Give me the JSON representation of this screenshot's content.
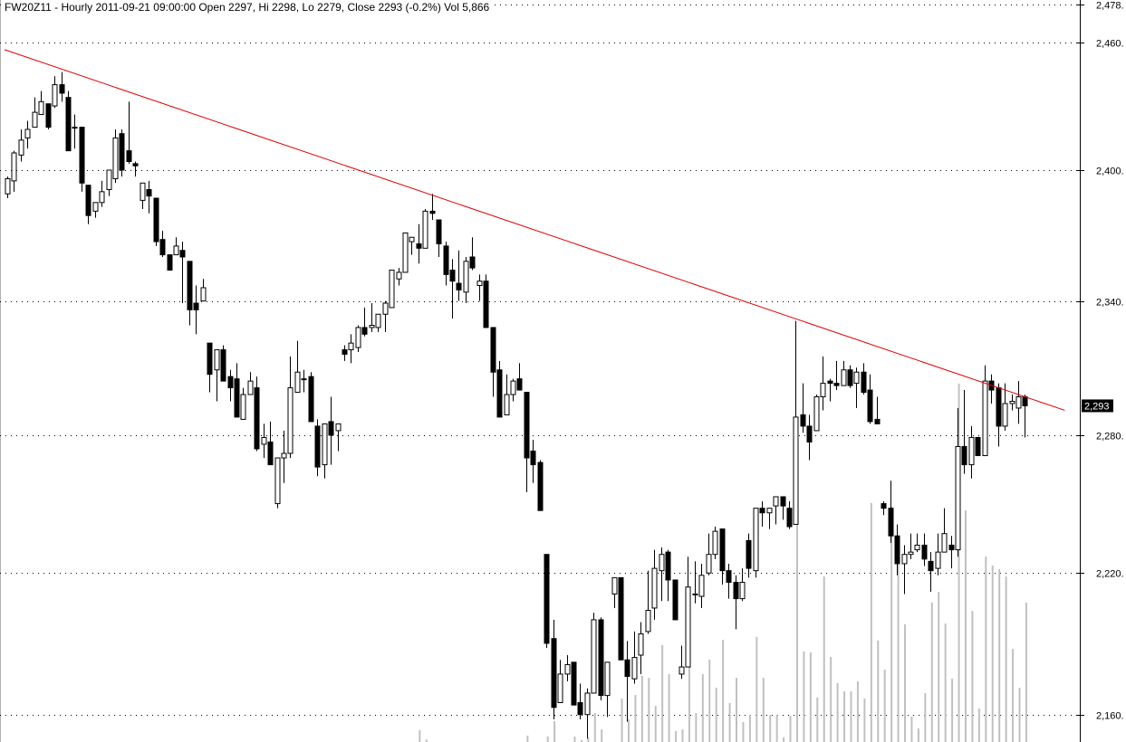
{
  "header": {
    "title": "FW20Z11 - Hourly 2011-09-21 09:00:00 Open 2297, Hi 2298, Lo 2279, Close 2293 (-0.2%) Vol 5,866"
  },
  "chart_data": {
    "type": "candlestick",
    "symbol": "FW20Z11",
    "interval": "Hourly",
    "y_scale": "log",
    "ylim": [
      2150,
      2478
    ],
    "grid": "horizontal dotted",
    "y_ticks": [
      {
        "value": 2478,
        "label": "2,478."
      },
      {
        "value": 2460,
        "label": "2,460."
      },
      {
        "value": 2400,
        "label": "2,400."
      },
      {
        "value": 2340,
        "label": "2,340."
      },
      {
        "value": 2280,
        "label": "2,280."
      },
      {
        "value": 2220,
        "label": "2,220."
      },
      {
        "value": 2160,
        "label": "2,160."
      }
    ],
    "last_price": {
      "value": 2293,
      "label": "2,293"
    },
    "colors": {
      "up": "#ffffff",
      "down": "#000000",
      "outline": "#000000",
      "volume": "#c0c0c0",
      "trendline": "#e00000",
      "last_price_bg": "#000000"
    },
    "ohlc_fields": [
      "open",
      "high",
      "low",
      "close"
    ],
    "ohlc": [
      [
        2389,
        2397,
        2387,
        2396
      ],
      [
        2395,
        2409,
        2390,
        2408
      ],
      [
        2407,
        2419,
        2404,
        2414
      ],
      [
        2415,
        2423,
        2410,
        2419
      ],
      [
        2420,
        2434,
        2420,
        2427
      ],
      [
        2426,
        2437,
        2426,
        2432
      ],
      [
        2431,
        2431,
        2419,
        2420
      ],
      [
        2430,
        2444,
        2429,
        2440
      ],
      [
        2440,
        2446,
        2432,
        2436
      ],
      [
        2434,
        2437,
        2409,
        2409
      ],
      [
        2420,
        2426,
        2410,
        2420
      ],
      [
        2420,
        2420,
        2390,
        2394
      ],
      [
        2393,
        2393,
        2375,
        2379
      ],
      [
        2381,
        2385,
        2378,
        2385
      ],
      [
        2385,
        2395,
        2383,
        2390
      ],
      [
        2391,
        2400,
        2388,
        2400
      ],
      [
        2396,
        2419,
        2394,
        2415
      ],
      [
        2417,
        2419,
        2397,
        2400
      ],
      [
        2409,
        2432,
        2403,
        2404
      ],
      [
        2403,
        2404,
        2397,
        2402
      ],
      [
        2386,
        2394,
        2382,
        2394
      ],
      [
        2391,
        2395,
        2380,
        2388
      ],
      [
        2387,
        2387,
        2365,
        2367
      ],
      [
        2368,
        2372,
        2360,
        2361
      ],
      [
        2361,
        2361,
        2354,
        2354
      ],
      [
        2361,
        2369,
        2361,
        2365
      ],
      [
        2363,
        2367,
        2339,
        2360
      ],
      [
        2358,
        2358,
        2329,
        2336
      ],
      [
        2339,
        2347,
        2325,
        2336
      ],
      [
        2340,
        2350,
        2340,
        2346
      ],
      [
        2321,
        2321,
        2299,
        2307
      ],
      [
        2309,
        2318,
        2295,
        2318
      ],
      [
        2318,
        2320,
        2304,
        2304
      ],
      [
        2306,
        2309,
        2295,
        2301
      ],
      [
        2305,
        2312,
        2288,
        2288
      ],
      [
        2287,
        2301,
        2287,
        2298
      ],
      [
        2298,
        2308,
        2298,
        2304
      ],
      [
        2301,
        2306,
        2273,
        2274
      ],
      [
        2276,
        2285,
        2270,
        2279
      ],
      [
        2277,
        2286,
        2267,
        2267
      ],
      [
        2250,
        2270,
        2248,
        2270
      ],
      [
        2270,
        2282,
        2259,
        2272
      ],
      [
        2272,
        2315,
        2270,
        2301
      ],
      [
        2299,
        2322,
        2299,
        2308
      ],
      [
        2305,
        2309,
        2299,
        2305
      ],
      [
        2306,
        2308,
        2286,
        2286
      ],
      [
        2284,
        2287,
        2262,
        2266
      ],
      [
        2267,
        2285,
        2261,
        2285
      ],
      [
        2286,
        2297,
        2267,
        2280
      ],
      [
        2282,
        2285,
        2273,
        2285
      ],
      [
        2318,
        2320,
        2313,
        2316
      ],
      [
        2318,
        2325,
        2312,
        2321
      ],
      [
        2319,
        2329,
        2317,
        2328
      ],
      [
        2328,
        2337,
        2324,
        2325
      ],
      [
        2328,
        2339,
        2326,
        2329
      ],
      [
        2328,
        2334,
        2326,
        2334
      ],
      [
        2334,
        2340,
        2326,
        2339
      ],
      [
        2337,
        2354,
        2337,
        2354
      ],
      [
        2350,
        2355,
        2347,
        2353
      ],
      [
        2353,
        2371,
        2353,
        2371
      ],
      [
        2367,
        2369,
        2361,
        2369
      ],
      [
        2366,
        2375,
        2357,
        2364
      ],
      [
        2364,
        2382,
        2364,
        2381
      ],
      [
        2381,
        2389,
        2377,
        2380
      ],
      [
        2377,
        2377,
        2360,
        2366
      ],
      [
        2365,
        2367,
        2347,
        2352
      ],
      [
        2354,
        2359,
        2332,
        2349
      ],
      [
        2348,
        2363,
        2340,
        2345
      ],
      [
        2344,
        2360,
        2339,
        2358
      ],
      [
        2360,
        2369,
        2354,
        2355
      ],
      [
        2347,
        2352,
        2340,
        2349
      ],
      [
        2349,
        2352,
        2328,
        2328
      ],
      [
        2328,
        2328,
        2297,
        2308
      ],
      [
        2309,
        2313,
        2288,
        2288
      ],
      [
        2289,
        2307,
        2289,
        2298
      ],
      [
        2298,
        2305,
        2295,
        2304
      ],
      [
        2305,
        2312,
        2300,
        2300
      ],
      [
        2299,
        2299,
        2255,
        2270
      ],
      [
        2273,
        2278,
        2259,
        2267
      ],
      [
        2268,
        2269,
        2247,
        2247
      ],
      [
        2228,
        2228,
        2188,
        2190
      ],
      [
        2192,
        2200,
        2158,
        2163
      ],
      [
        2165,
        2183,
        2165,
        2177
      ],
      [
        2177,
        2185,
        2174,
        2181
      ],
      [
        2182,
        2182,
        2164,
        2164
      ],
      [
        2165,
        2173,
        2158,
        2160
      ],
      [
        2160,
        2171,
        2150,
        2169
      ],
      [
        2169,
        2203,
        2169,
        2200
      ],
      [
        2200,
        2201,
        2166,
        2168
      ],
      [
        2168,
        2182,
        2159,
        2182
      ],
      [
        2211,
        2218,
        2205,
        2218
      ],
      [
        2218,
        2218,
        2183,
        2183
      ],
      [
        2183,
        2191,
        2157,
        2176
      ],
      [
        2175,
        2195,
        2173,
        2184
      ],
      [
        2185,
        2199,
        2177,
        2194
      ],
      [
        2195,
        2221,
        2194,
        2204
      ],
      [
        2205,
        2230,
        2200,
        2222
      ],
      [
        2221,
        2231,
        2208,
        2228
      ],
      [
        2229,
        2230,
        2208,
        2217
      ],
      [
        2217,
        2217,
        2200,
        2200
      ],
      [
        2177,
        2189,
        2175,
        2180
      ],
      [
        2180,
        2227,
        2180,
        2214
      ],
      [
        2211,
        2225,
        2207,
        2211
      ],
      [
        2210,
        2224,
        2205,
        2219
      ],
      [
        2220,
        2237,
        2219,
        2228
      ],
      [
        2228,
        2240,
        2226,
        2238
      ],
      [
        2239,
        2239,
        2215,
        2221
      ],
      [
        2221,
        2224,
        2209,
        2216
      ],
      [
        2216,
        2219,
        2196,
        2209
      ],
      [
        2209,
        2222,
        2208,
        2216
      ],
      [
        2234,
        2237,
        2218,
        2222
      ],
      [
        2221,
        2248,
        2218,
        2248
      ],
      [
        2248,
        2251,
        2240,
        2246
      ],
      [
        2246,
        2248,
        2239,
        2248
      ],
      [
        2249,
        2253,
        2241,
        2253
      ],
      [
        2253,
        2253,
        2243,
        2249
      ],
      [
        2248,
        2251,
        2239,
        2240
      ],
      [
        2241,
        2331,
        2241,
        2288
      ],
      [
        2289,
        2303,
        2281,
        2284
      ],
      [
        2284,
        2289,
        2269,
        2277
      ],
      [
        2282,
        2298,
        2282,
        2297
      ],
      [
        2297,
        2315,
        2291,
        2303
      ],
      [
        2304,
        2305,
        2295,
        2303
      ],
      [
        2303,
        2313,
        2300,
        2302
      ],
      [
        2302,
        2313,
        2302,
        2309
      ],
      [
        2309,
        2311,
        2301,
        2302
      ],
      [
        2303,
        2310,
        2292,
        2308
      ],
      [
        2308,
        2312,
        2298,
        2299
      ],
      [
        2300,
        2307,
        2285,
        2286
      ],
      [
        2287,
        2297,
        2285,
        2285
      ],
      [
        2250,
        2251,
        2245,
        2248
      ],
      [
        2248,
        2260,
        2233,
        2236
      ],
      [
        2236,
        2241,
        2219,
        2224
      ],
      [
        2224,
        2232,
        2211,
        2228
      ],
      [
        2228,
        2237,
        2226,
        2229
      ],
      [
        2230,
        2237,
        2229,
        2232
      ],
      [
        2232,
        2237,
        2223,
        2226
      ],
      [
        2225,
        2229,
        2212,
        2221
      ],
      [
        2222,
        2237,
        2219,
        2229
      ],
      [
        2229,
        2248,
        2229,
        2237
      ],
      [
        2232,
        2236,
        2222,
        2230
      ],
      [
        2230,
        2292,
        2227,
        2275
      ],
      [
        2275,
        2300,
        2263,
        2267
      ],
      [
        2267,
        2284,
        2261,
        2279
      ],
      [
        2279,
        2279,
        2271,
        2271
      ],
      [
        2271,
        2311,
        2271,
        2304
      ],
      [
        2304,
        2307,
        2294,
        2300
      ],
      [
        2301,
        2303,
        2275,
        2284
      ],
      [
        2284,
        2303,
        2282,
        2294
      ],
      [
        2294,
        2298,
        2291,
        2295
      ],
      [
        2292,
        2304,
        2285,
        2297
      ],
      [
        2297,
        2298,
        2279,
        2293
      ]
    ],
    "volume": [
      null,
      null,
      null,
      null,
      null,
      null,
      null,
      null,
      null,
      null,
      null,
      null,
      null,
      null,
      null,
      null,
      null,
      null,
      null,
      null,
      null,
      null,
      null,
      null,
      null,
      null,
      null,
      null,
      null,
      null,
      null,
      null,
      null,
      null,
      null,
      null,
      null,
      null,
      null,
      null,
      null,
      null,
      null,
      null,
      null,
      null,
      null,
      null,
      null,
      null,
      null,
      null,
      null,
      null,
      null,
      null,
      null,
      null,
      null,
      null,
      null,
      500,
      110,
      null,
      null,
      null,
      null,
      null,
      null,
      null,
      null,
      null,
      null,
      null,
      null,
      null,
      null,
      270,
      null,
      null,
      230,
      880,
      null,
      null,
      230,
      80,
      190,
      1220,
      530,
      null,
      null,
      1830,
      950,
      1980,
      2780,
      2700,
      1520,
      4080,
      2860,
      460,
      530,
      3200,
      1220,
      2860,
      3470,
      2290,
      4300,
      1640,
      2700,
      840,
      1140,
      4420,
      2700,
      1140,
      1140,
      190,
      1100,
      9260,
      3810,
      3770,
      1870,
      6970,
      3580,
      2480,
      2130,
      2130,
      2550,
      1830,
      10060,
      4270,
      3050,
      9900,
      8380,
      4950,
      1070,
      570,
      2060,
      5870,
      6320,
      4990,
      2670,
      15090,
      9750,
      5520,
      1410,
      7810,
      7430,
      7280,
      6970,
      3920,
      2290,
      5866
    ],
    "trendline": {
      "from": {
        "bar": 0.6,
        "price": 2456.6
      },
      "to": {
        "bar": 157.9,
        "price": 2291
      }
    }
  }
}
